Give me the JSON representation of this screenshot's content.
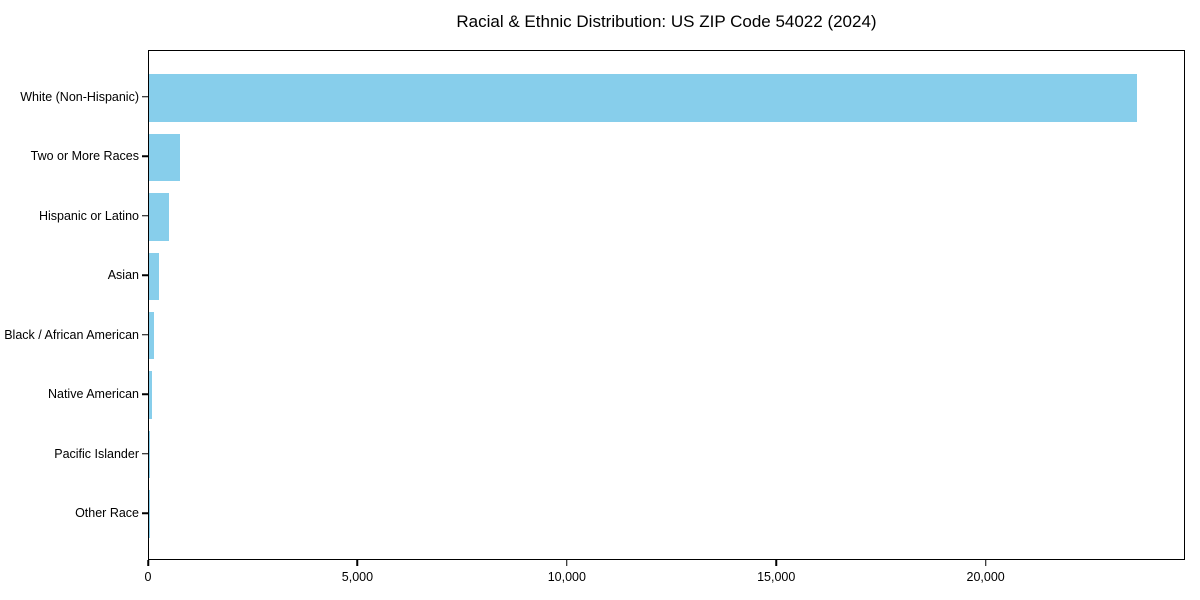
{
  "chart_data": {
    "type": "bar",
    "orientation": "horizontal",
    "title": "Racial & Ethnic Distribution: US ZIP Code 54022 (2024)",
    "categories": [
      "White (Non-Hispanic)",
      "Two or More Races",
      "Hispanic or Latino",
      "Asian",
      "Black / African American",
      "Native American",
      "Pacific Islander",
      "Other Race"
    ],
    "values": [
      23580,
      750,
      485,
      250,
      110,
      72,
      12,
      18
    ],
    "xlabel": "",
    "ylabel": "",
    "xlim": [
      0,
      24760
    ],
    "xticks": [
      0,
      5000,
      10000,
      15000,
      20000
    ],
    "xtick_labels": [
      "0",
      "5,000",
      "10,000",
      "15,000",
      "20,000"
    ],
    "bar_color": "#87CEEB",
    "text_color": "#000000",
    "grid": false,
    "legend": null
  }
}
